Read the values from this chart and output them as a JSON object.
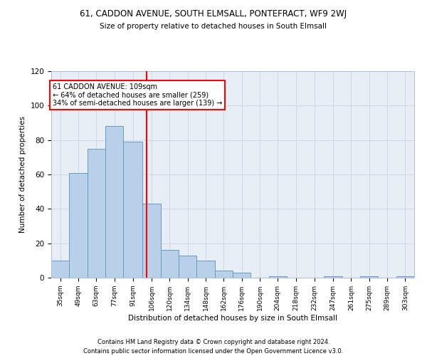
{
  "title1": "61, CADDON AVENUE, SOUTH ELMSALL, PONTEFRACT, WF9 2WJ",
  "title2": "Size of property relative to detached houses in South Elmsall",
  "xlabel": "Distribution of detached houses by size in South Elmsall",
  "ylabel": "Number of detached properties",
  "bar_color": "#b8d0e8",
  "bar_edge_color": "#6699cc",
  "vline_x": 109,
  "vline_color": "red",
  "annotation_text": "61 CADDON AVENUE: 109sqm\n← 64% of detached houses are smaller (259)\n34% of semi-detached houses are larger (139) →",
  "annotation_box_color": "white",
  "annotation_box_edge": "red",
  "bin_edges": [
    35,
    49,
    63,
    77,
    91,
    106,
    120,
    134,
    148,
    162,
    176,
    190,
    204,
    218,
    232,
    247,
    261,
    275,
    289,
    303,
    317
  ],
  "bar_heights": [
    10,
    61,
    75,
    88,
    79,
    43,
    16,
    13,
    10,
    4,
    3,
    0,
    1,
    0,
    0,
    1,
    0,
    1,
    0,
    1
  ],
  "ylim": [
    0,
    120
  ],
  "yticks": [
    0,
    20,
    40,
    60,
    80,
    100,
    120
  ],
  "grid_color": "#d0d8e8",
  "background_color": "#e8eef5",
  "footer1": "Contains HM Land Registry data © Crown copyright and database right 2024.",
  "footer2": "Contains public sector information licensed under the Open Government Licence v3.0."
}
